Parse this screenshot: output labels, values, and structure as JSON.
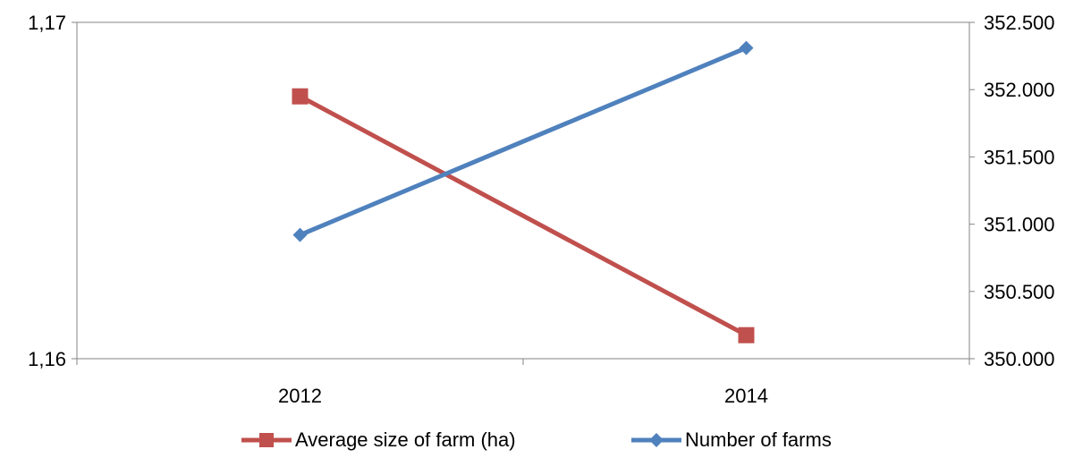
{
  "chart_data": {
    "type": "line",
    "categories": [
      "2012",
      "2014"
    ],
    "left_axis": {
      "range": [
        1.16,
        1.17
      ],
      "tick_labels": [
        "1,16",
        "1,17"
      ]
    },
    "right_axis": {
      "range": [
        350000,
        352500
      ],
      "tick_labels": [
        "350.000",
        "350.500",
        "351.000",
        "351.500",
        "352.000",
        "352.500"
      ]
    },
    "series": [
      {
        "name": "Average size of farm (ha)",
        "axis": "left",
        "color": "#C0504D",
        "marker": "square",
        "values": [
          1.1678,
          1.1607
        ]
      },
      {
        "name": "Number of farms",
        "axis": "right",
        "color": "#4F81BD",
        "marker": "diamond",
        "values": [
          350920,
          352310
        ]
      }
    ],
    "grid": false,
    "legend": "bottom"
  }
}
